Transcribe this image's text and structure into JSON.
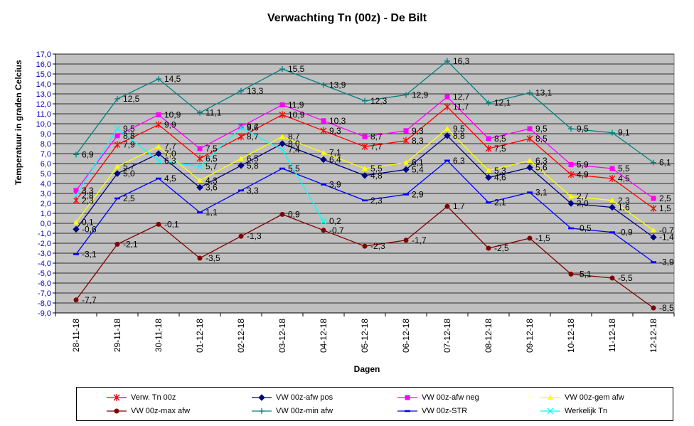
{
  "chart_data": {
    "type": "line",
    "title": "Verwachting Tn (00z) - De Bilt",
    "xlabel": "Dagen",
    "ylabel": "Temperatuur in graden Celcius",
    "ylim": [
      -9.0,
      17.0
    ],
    "ytick_step": 1.0,
    "ytick_labels": [
      "17,0",
      "16,0",
      "15,0",
      "14,0",
      "13,0",
      "12,0",
      "11,0",
      "10,0",
      "9,0",
      "8,0",
      "7,0",
      "6,0",
      "5,0",
      "4,0",
      "3,0",
      "2,0",
      "1,0",
      "0,0",
      "-1,0",
      "-2,0",
      "-3,0",
      "-4,0",
      "-5,0",
      "-6,0",
      "-7,0",
      "-8,0",
      "-9,0"
    ],
    "categories": [
      "28-11-18",
      "29-11-18",
      "30-11-18",
      "01-12-18",
      "02-12-18",
      "03-12-18",
      "04-12-18",
      "05-12-18",
      "06-12-18",
      "07-12-18",
      "08-12-18",
      "09-12-18",
      "10-12-18",
      "11-12-18",
      "12-12-18"
    ],
    "grid": true,
    "legend_position": "bottom",
    "series": [
      {
        "name": "Verw. Tn 00z",
        "color": "#ff0000",
        "marker": "star",
        "values": [
          2.3,
          7.9,
          9.9,
          6.5,
          8.7,
          10.9,
          9.3,
          7.7,
          8.3,
          11.7,
          7.5,
          8.5,
          4.9,
          4.5,
          1.5
        ],
        "labels": [
          "2,3",
          "7,9",
          "9,9",
          "6,5",
          "8,7",
          "10,9",
          "9,3",
          "7,7",
          "8,3",
          "11,7",
          "7,5",
          "8,5",
          "4,9",
          "4,5",
          "1,5"
        ]
      },
      {
        "name": "VW 00z-afw pos",
        "color": "#000080",
        "marker": "diamond",
        "values": [
          -0.6,
          5.0,
          7.0,
          3.6,
          5.8,
          8.0,
          6.4,
          4.8,
          5.4,
          8.8,
          4.6,
          5.6,
          2.0,
          1.6,
          -1.4
        ],
        "labels": [
          "-0,6",
          "5,0",
          "7,0",
          "3,6",
          "5,8",
          "8,0",
          "6,4",
          "4,8",
          "5,4",
          "8,8",
          "4,6",
          "5,6",
          "2,0",
          "1,6",
          "-1,4"
        ]
      },
      {
        "name": "VW 00z-afw neg",
        "color": "#ff00ff",
        "marker": "square",
        "values": [
          3.3,
          8.8,
          10.9,
          7.5,
          9.7,
          11.9,
          10.3,
          8.7,
          9.3,
          12.7,
          8.5,
          9.5,
          5.9,
          5.5,
          2.5
        ],
        "labels": [
          "3,3",
          "8,8",
          "10,9",
          "7,5",
          "9,7",
          "11,9",
          "10,3",
          "8,7",
          "9,3",
          "12,7",
          "8,5",
          "9,5",
          "5,9",
          "5,5",
          "2,5"
        ]
      },
      {
        "name": "VW 00z-gem afw",
        "color": "#ffff00",
        "marker": "triangle",
        "values": [
          0.1,
          5.7,
          7.7,
          4.3,
          6.5,
          8.7,
          7.1,
          5.5,
          6.1,
          9.5,
          5.3,
          6.3,
          2.7,
          2.3,
          -0.7
        ],
        "labels": [
          "0,1",
          "5,7",
          "7,7",
          "4,3",
          "6,5",
          "8,7",
          "7,1",
          "5,5",
          "6,1",
          "9,5",
          "5,3",
          "6,3",
          "2,7",
          "2,3",
          "-0,7"
        ]
      },
      {
        "name": "VW 00z-max afw",
        "color": "#800000",
        "marker": "circle",
        "values": [
          -7.7,
          -2.1,
          -0.1,
          -3.5,
          -1.3,
          0.9,
          -0.7,
          -2.3,
          -1.7,
          1.7,
          -2.5,
          -1.5,
          -5.1,
          -5.5,
          -8.5
        ],
        "labels": [
          "-7,7",
          "-2,1",
          "-0,1",
          "-3,5",
          "-1,3",
          "0,9",
          "-0,7",
          "-2,3",
          "-1,7",
          "1,7",
          "-2,5",
          "-1,5",
          "-5,1",
          "-5,5",
          "-8,5"
        ]
      },
      {
        "name": "VW 00z-min afw",
        "color": "#008080",
        "marker": "plus",
        "values": [
          6.9,
          12.5,
          14.5,
          11.1,
          13.3,
          15.5,
          13.9,
          12.3,
          12.9,
          16.3,
          12.1,
          13.1,
          9.5,
          9.1,
          6.1
        ],
        "labels": [
          "6,9",
          "12,5",
          "14,5",
          "11,1",
          "13,3",
          "15,5",
          "13,9",
          "12,3",
          "12,9",
          "16,3",
          "12,1",
          "13,1",
          "9,5",
          "9,1",
          "6,1"
        ]
      },
      {
        "name": "VW 00z-STR",
        "color": "#0000ff",
        "marker": "dash",
        "values": [
          -3.1,
          2.5,
          4.5,
          1.1,
          3.3,
          5.5,
          3.9,
          2.3,
          2.9,
          6.3,
          2.1,
          3.1,
          -0.5,
          -0.9,
          -3.9
        ],
        "labels": [
          "-3,1",
          "2,5",
          "4,5",
          "1,1",
          "3,3",
          "5,5",
          "3,9",
          "2,3",
          "2,9",
          "6,3",
          "2,1",
          "3,1",
          "-0,5",
          "-0,9",
          "-3,9"
        ]
      },
      {
        "name": "Werkelijk Tn",
        "color": "#00ffff",
        "marker": "x",
        "values": [
          2.8,
          9.5,
          6.3,
          5.7,
          9.6,
          7.4,
          0.2,
          null,
          null,
          null,
          null,
          null,
          null,
          null,
          null
        ],
        "labels": [
          "2,8",
          "9,5",
          "6,3",
          "5,7",
          "9,6",
          "7,4",
          "0,2",
          "",
          "",
          "",
          "",
          "",
          "",
          "",
          ""
        ]
      }
    ]
  }
}
